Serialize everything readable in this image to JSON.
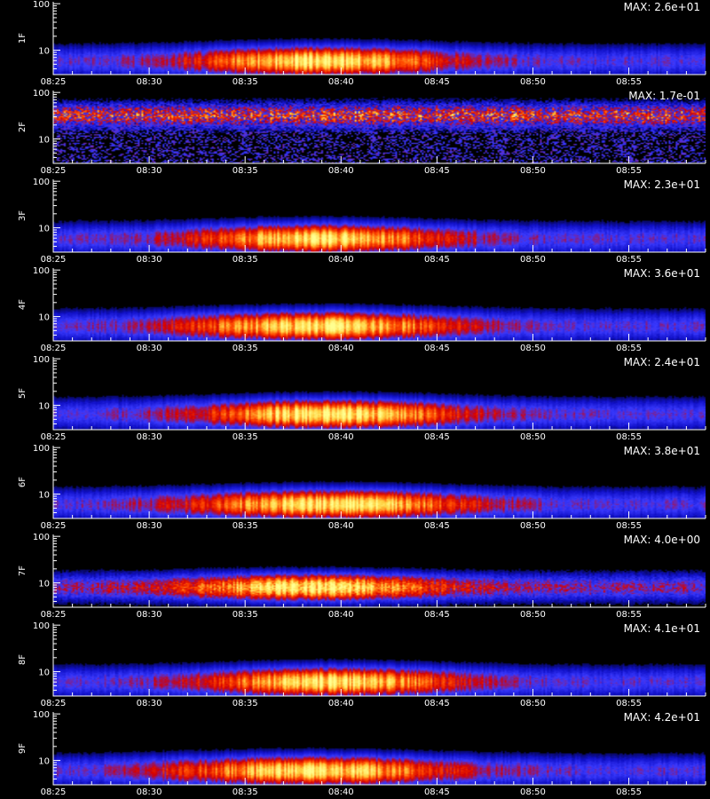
{
  "chart_data": {
    "type": "heatmap",
    "x_tick_labels": [
      "08:25",
      "08:30",
      "08:35",
      "08:40",
      "08:45",
      "08:50",
      "08:55"
    ],
    "x_tick_minutes": [
      25,
      30,
      35,
      40,
      45,
      50,
      55
    ],
    "x_range_minutes": [
      25,
      59
    ],
    "y_scale": "log",
    "y_range": [
      3,
      110
    ],
    "y_tick_labels": [
      "10",
      "100"
    ],
    "y_tick_values": [
      10,
      100
    ],
    "colormap": [
      "#000000",
      "#1010c8",
      "#3a3aff",
      "#d40000",
      "#ff4a00",
      "#ffd040",
      "#ffff90"
    ],
    "panels": [
      {
        "name": "1F",
        "max_label": "MAX: 2.6e+01",
        "band_y": 5.8,
        "band_width": 0.22,
        "peak_minute": 39,
        "spread_minutes": 4.5,
        "intensity": 0.95,
        "noise": 0.08
      },
      {
        "name": "2F",
        "max_label": "MAX: 1.7e-01",
        "band_y": 32,
        "band_width": 0.18,
        "peak_minute": 42,
        "spread_minutes": 30,
        "intensity": 0.55,
        "noise": 0.55
      },
      {
        "name": "3F",
        "max_label": "MAX: 2.3e+01",
        "band_y": 5.8,
        "band_width": 0.22,
        "peak_minute": 39,
        "spread_minutes": 4.5,
        "intensity": 0.93,
        "noise": 0.08
      },
      {
        "name": "4F",
        "max_label": "MAX: 3.6e+01",
        "band_y": 6.2,
        "band_width": 0.22,
        "peak_minute": 39,
        "spread_minutes": 5,
        "intensity": 0.92,
        "noise": 0.08
      },
      {
        "name": "5F",
        "max_label": "MAX: 2.4e+01",
        "band_y": 6.4,
        "band_width": 0.22,
        "peak_minute": 39.5,
        "spread_minutes": 4.5,
        "intensity": 1.0,
        "noise": 0.08
      },
      {
        "name": "6F",
        "max_label": "MAX: 3.8e+01",
        "band_y": 6.0,
        "band_width": 0.22,
        "peak_minute": 39.5,
        "spread_minutes": 5,
        "intensity": 0.95,
        "noise": 0.08
      },
      {
        "name": "7F",
        "max_label": "MAX: 4.0e+00",
        "band_y": 8.0,
        "band_width": 0.2,
        "peak_minute": 38.5,
        "spread_minutes": 4.5,
        "intensity": 0.9,
        "noise": 0.2
      },
      {
        "name": "8F",
        "max_label": "MAX: 4.1e+01",
        "band_y": 6.0,
        "band_width": 0.22,
        "peak_minute": 39.5,
        "spread_minutes": 4.5,
        "intensity": 0.95,
        "noise": 0.08
      },
      {
        "name": "9F",
        "max_label": "MAX: 4.2e+01",
        "band_y": 6.0,
        "band_width": 0.22,
        "peak_minute": 38.5,
        "spread_minutes": 5,
        "intensity": 0.92,
        "noise": 0.08
      }
    ],
    "footer_text": ""
  }
}
